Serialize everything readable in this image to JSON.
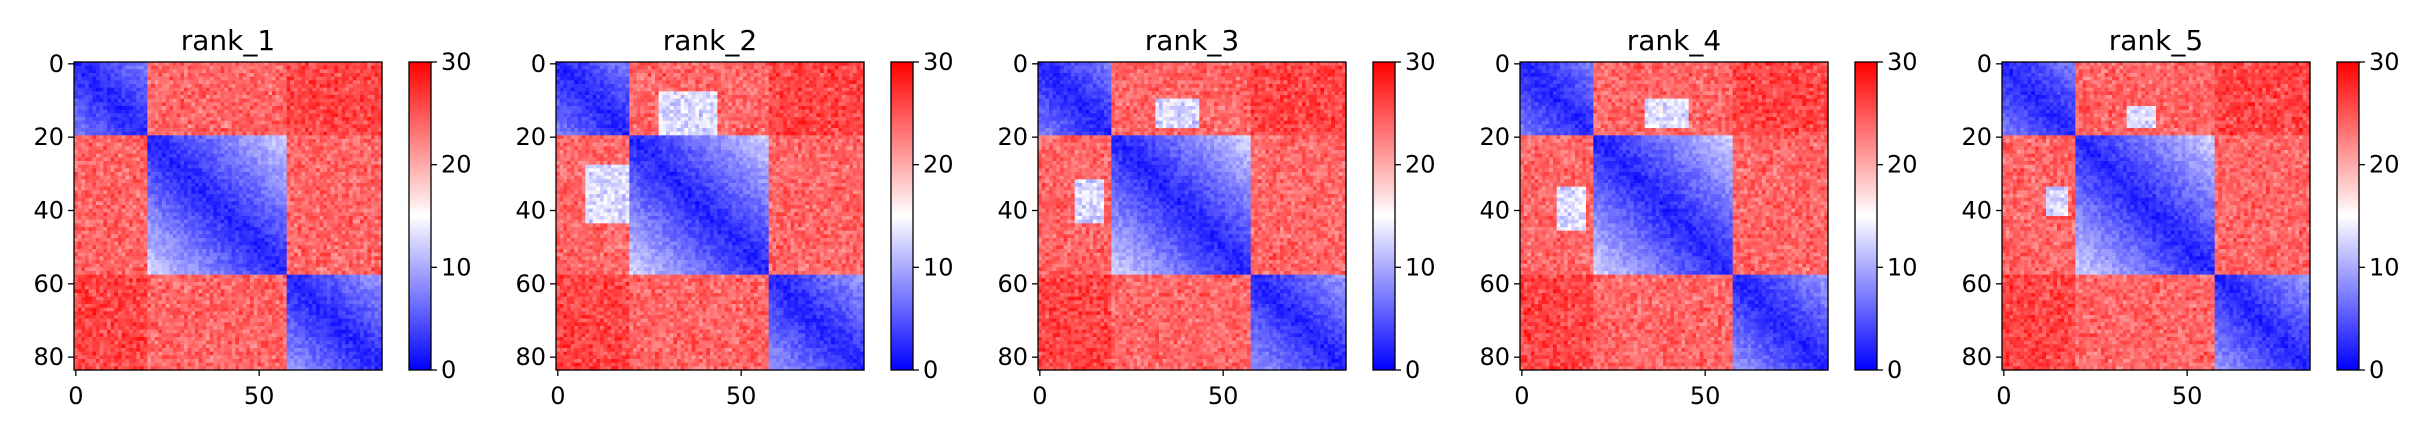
{
  "chart_data": [
    {
      "type": "heatmap",
      "title": "rank_1",
      "n": 84,
      "xticks": [
        0,
        50
      ],
      "yticks": [
        0,
        20,
        40,
        60,
        80
      ],
      "colorbar": {
        "ticks": [
          0,
          10,
          20,
          30
        ],
        "range": [
          0,
          30
        ],
        "colormap": [
          "#0000ff",
          "#ffffff",
          "#ff0000"
        ]
      },
      "pattern": {
        "domains": [
          [
            0,
            20
          ],
          [
            20,
            58
          ],
          [
            58,
            84
          ]
        ],
        "inter_domain_contact": []
      }
    },
    {
      "type": "heatmap",
      "title": "rank_2",
      "n": 84,
      "xticks": [
        0,
        50
      ],
      "yticks": [
        0,
        20,
        40,
        60,
        80
      ],
      "colorbar": {
        "ticks": [
          0,
          10,
          20,
          30
        ],
        "range": [
          0,
          30
        ],
        "colormap": [
          "#0000ff",
          "#ffffff",
          "#ff0000"
        ]
      },
      "pattern": {
        "domains": [
          [
            0,
            20
          ],
          [
            20,
            58
          ],
          [
            58,
            84
          ]
        ],
        "inter_domain_contact": [
          [
            8,
            20,
            28,
            44
          ]
        ]
      }
    },
    {
      "type": "heatmap",
      "title": "rank_3",
      "n": 84,
      "xticks": [
        0,
        50
      ],
      "yticks": [
        0,
        20,
        40,
        60,
        80
      ],
      "colorbar": {
        "ticks": [
          0,
          10,
          20,
          30
        ],
        "range": [
          0,
          30
        ],
        "colormap": [
          "#0000ff",
          "#ffffff",
          "#ff0000"
        ]
      },
      "pattern": {
        "domains": [
          [
            0,
            20
          ],
          [
            20,
            58
          ],
          [
            58,
            84
          ]
        ],
        "inter_domain_contact": [
          [
            10,
            18,
            32,
            44
          ]
        ]
      }
    },
    {
      "type": "heatmap",
      "title": "rank_4",
      "n": 84,
      "xticks": [
        0,
        50
      ],
      "yticks": [
        0,
        20,
        40,
        60,
        80
      ],
      "colorbar": {
        "ticks": [
          0,
          10,
          20,
          30
        ],
        "range": [
          0,
          30
        ],
        "colormap": [
          "#0000ff",
          "#ffffff",
          "#ff0000"
        ]
      },
      "pattern": {
        "domains": [
          [
            0,
            20
          ],
          [
            20,
            58
          ],
          [
            58,
            84
          ]
        ],
        "inter_domain_contact": [
          [
            10,
            18,
            34,
            46
          ]
        ]
      }
    },
    {
      "type": "heatmap",
      "title": "rank_5",
      "n": 84,
      "xticks": [
        0,
        50
      ],
      "yticks": [
        0,
        20,
        40,
        60,
        80
      ],
      "colorbar": {
        "ticks": [
          0,
          10,
          20,
          30
        ],
        "range": [
          0,
          30
        ],
        "colormap": [
          "#0000ff",
          "#ffffff",
          "#ff0000"
        ]
      },
      "pattern": {
        "domains": [
          [
            0,
            20
          ],
          [
            20,
            58
          ],
          [
            58,
            84
          ]
        ],
        "inter_domain_contact": [
          [
            12,
            18,
            34,
            42
          ]
        ]
      }
    }
  ]
}
